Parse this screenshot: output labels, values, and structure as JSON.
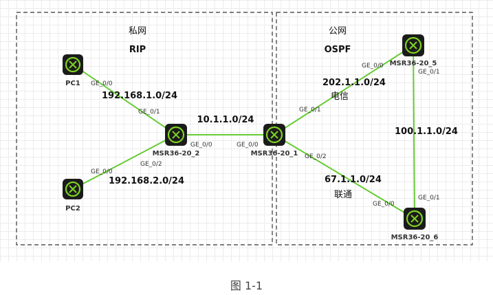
{
  "caption": "图 1-1",
  "zones": {
    "private": {
      "name": "私网",
      "protocol": "RIP"
    },
    "public": {
      "name": "公网",
      "protocol": "OSPF"
    }
  },
  "devices": {
    "pc1": "PC1",
    "pc2": "PC2",
    "msr2": "MSR36-20_2",
    "msr1": "MSR36-20_1",
    "msr5": "MSR36-20_5",
    "msr6": "MSR36-20_6"
  },
  "networks": {
    "n1": "192.168.1.0/24",
    "n2": "192.168.2.0/24",
    "n3": "10.1.1.0/24",
    "n4": "202.1.1.0/24",
    "n5": "100.1.1.0/24",
    "n6": "67.1.1.0/24"
  },
  "isps": {
    "telecom": "电信",
    "unicom": "联通"
  },
  "ports": {
    "pc1_ge": "GE_0/0",
    "msr2_ge01": "GE_0/1",
    "pc2_ge": "GE_0/0",
    "msr2_ge02": "GE_0/2",
    "msr2_ge00": "GE_0/0",
    "msr1_ge00": "GE_0/0",
    "msr1_ge01": "GE_0/1",
    "msr1_ge02": "GE_0/2",
    "msr5_ge00": "GE_0/0",
    "msr5_ge01": "GE_0/1",
    "msr6_ge01": "GE_0/1",
    "msr6_ge00": "GE_0/0"
  },
  "colors": {
    "link": "#66cc33",
    "icon": "#7ed321",
    "border": "#555555"
  }
}
